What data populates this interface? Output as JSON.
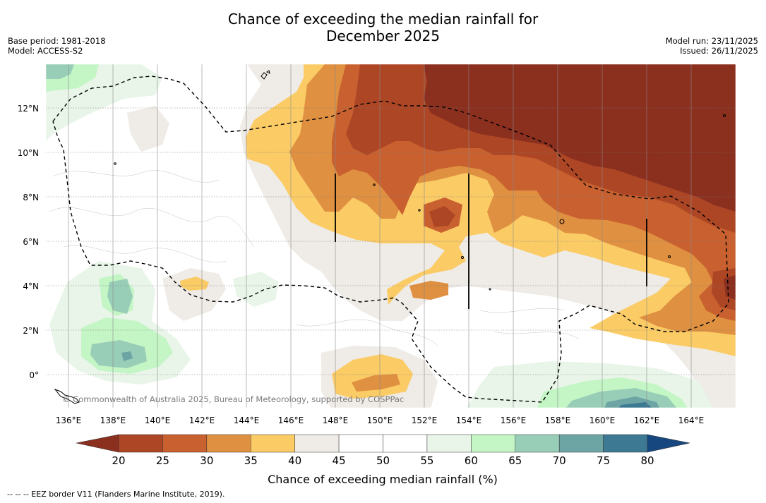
{
  "title_line1": "Chance of exceeding the median rainfall for",
  "title_line2": "December 2025",
  "base_period": "Base period: 1981-2018",
  "model": "Model: ACCESS-S2",
  "model_run": "Model run: 23/11/2025",
  "issued": "Issued: 26/11/2025",
  "copyright": "© Commonwealth of Australia 2025, Bureau of Meteorology, supported by COSPPac",
  "footnote": "--  --  -- EEZ border V11 (Flanders Marine Institute, 2019).",
  "map": {
    "lon_labels": [
      "136°E",
      "138°E",
      "140°E",
      "142°E",
      "144°E",
      "146°E",
      "148°E",
      "150°E",
      "152°E",
      "154°E",
      "156°E",
      "158°E",
      "160°E",
      "162°E",
      "164°E"
    ],
    "lat_labels": [
      "12°N",
      "10°N",
      "8°N",
      "6°N",
      "4°N",
      "2°N",
      "0°"
    ],
    "lon_range": [
      135.0,
      166.0
    ],
    "lat_range": [
      -1.5,
      13.9
    ]
  },
  "colorbar": {
    "label": "Chance of exceeding median rainfall (%)",
    "ticks": [
      "20",
      "25",
      "30",
      "35",
      "40",
      "45",
      "50",
      "55",
      "60",
      "65",
      "70",
      "75",
      "80"
    ],
    "colors": [
      "#8b2f1f",
      "#ad4625",
      "#c8602f",
      "#df9040",
      "#fbcb66",
      "#efebe6",
      "#ffffff",
      "#ffffff",
      "#e9f5e9",
      "#c4f5c5",
      "#98ceb7",
      "#6da4a4",
      "#3d7993",
      "#16477e"
    ]
  }
}
